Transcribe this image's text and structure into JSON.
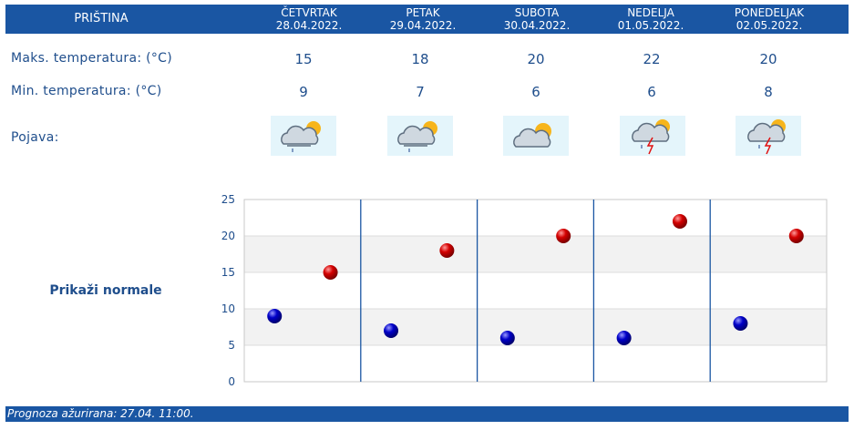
{
  "header": {
    "city": "PRIŠTINA",
    "days": [
      {
        "name": "ČETVRTAK",
        "date": "28.04.2022."
      },
      {
        "name": "PETAK",
        "date": "29.04.2022."
      },
      {
        "name": "SUBOTA",
        "date": "30.04.2022."
      },
      {
        "name": "NEDELJA",
        "date": "01.05.2022."
      },
      {
        "name": "PONEDELJAK",
        "date": "02.05.2022."
      }
    ]
  },
  "rows": {
    "max_label": "Maks. temperatura: (°C)",
    "min_label": "Min. temperatura: (°C)",
    "weather_label": "Pojava:",
    "max": [
      "15",
      "18",
      "20",
      "22",
      "20"
    ],
    "min": [
      "9",
      "7",
      "6",
      "6",
      "8"
    ],
    "weather_icons": [
      "sun-cloud-light-rain-icon",
      "sun-cloud-light-rain-icon",
      "sun-cloud-icon",
      "sun-cloud-thunder-icon",
      "sun-cloud-thunder-icon"
    ]
  },
  "normals_link": "Prikaži normale",
  "footer": {
    "text": "Prognoza ažurirana:  27.04.  11:00."
  },
  "colors": {
    "header_bg": "#1a56a3",
    "text": "#1f4e8c",
    "max_point": "#d40000",
    "min_point": "#0000c8",
    "icon_bg": "#e4f5fb"
  },
  "chart_data": {
    "type": "scatter",
    "categories": [
      "28.04.2022.",
      "29.04.2022.",
      "30.04.2022.",
      "01.05.2022.",
      "02.05.2022."
    ],
    "series": [
      {
        "values": [
          15,
          18,
          20,
          22,
          20
        ],
        "color": "#d40000"
      },
      {
        "values": [
          9,
          7,
          6,
          6,
          8
        ],
        "color": "#0000c8"
      }
    ],
    "yticks": [
      "0",
      "5",
      "10",
      "15",
      "20",
      "25"
    ],
    "ylim": [
      0,
      25
    ],
    "grid": true,
    "banded_background": true
  }
}
